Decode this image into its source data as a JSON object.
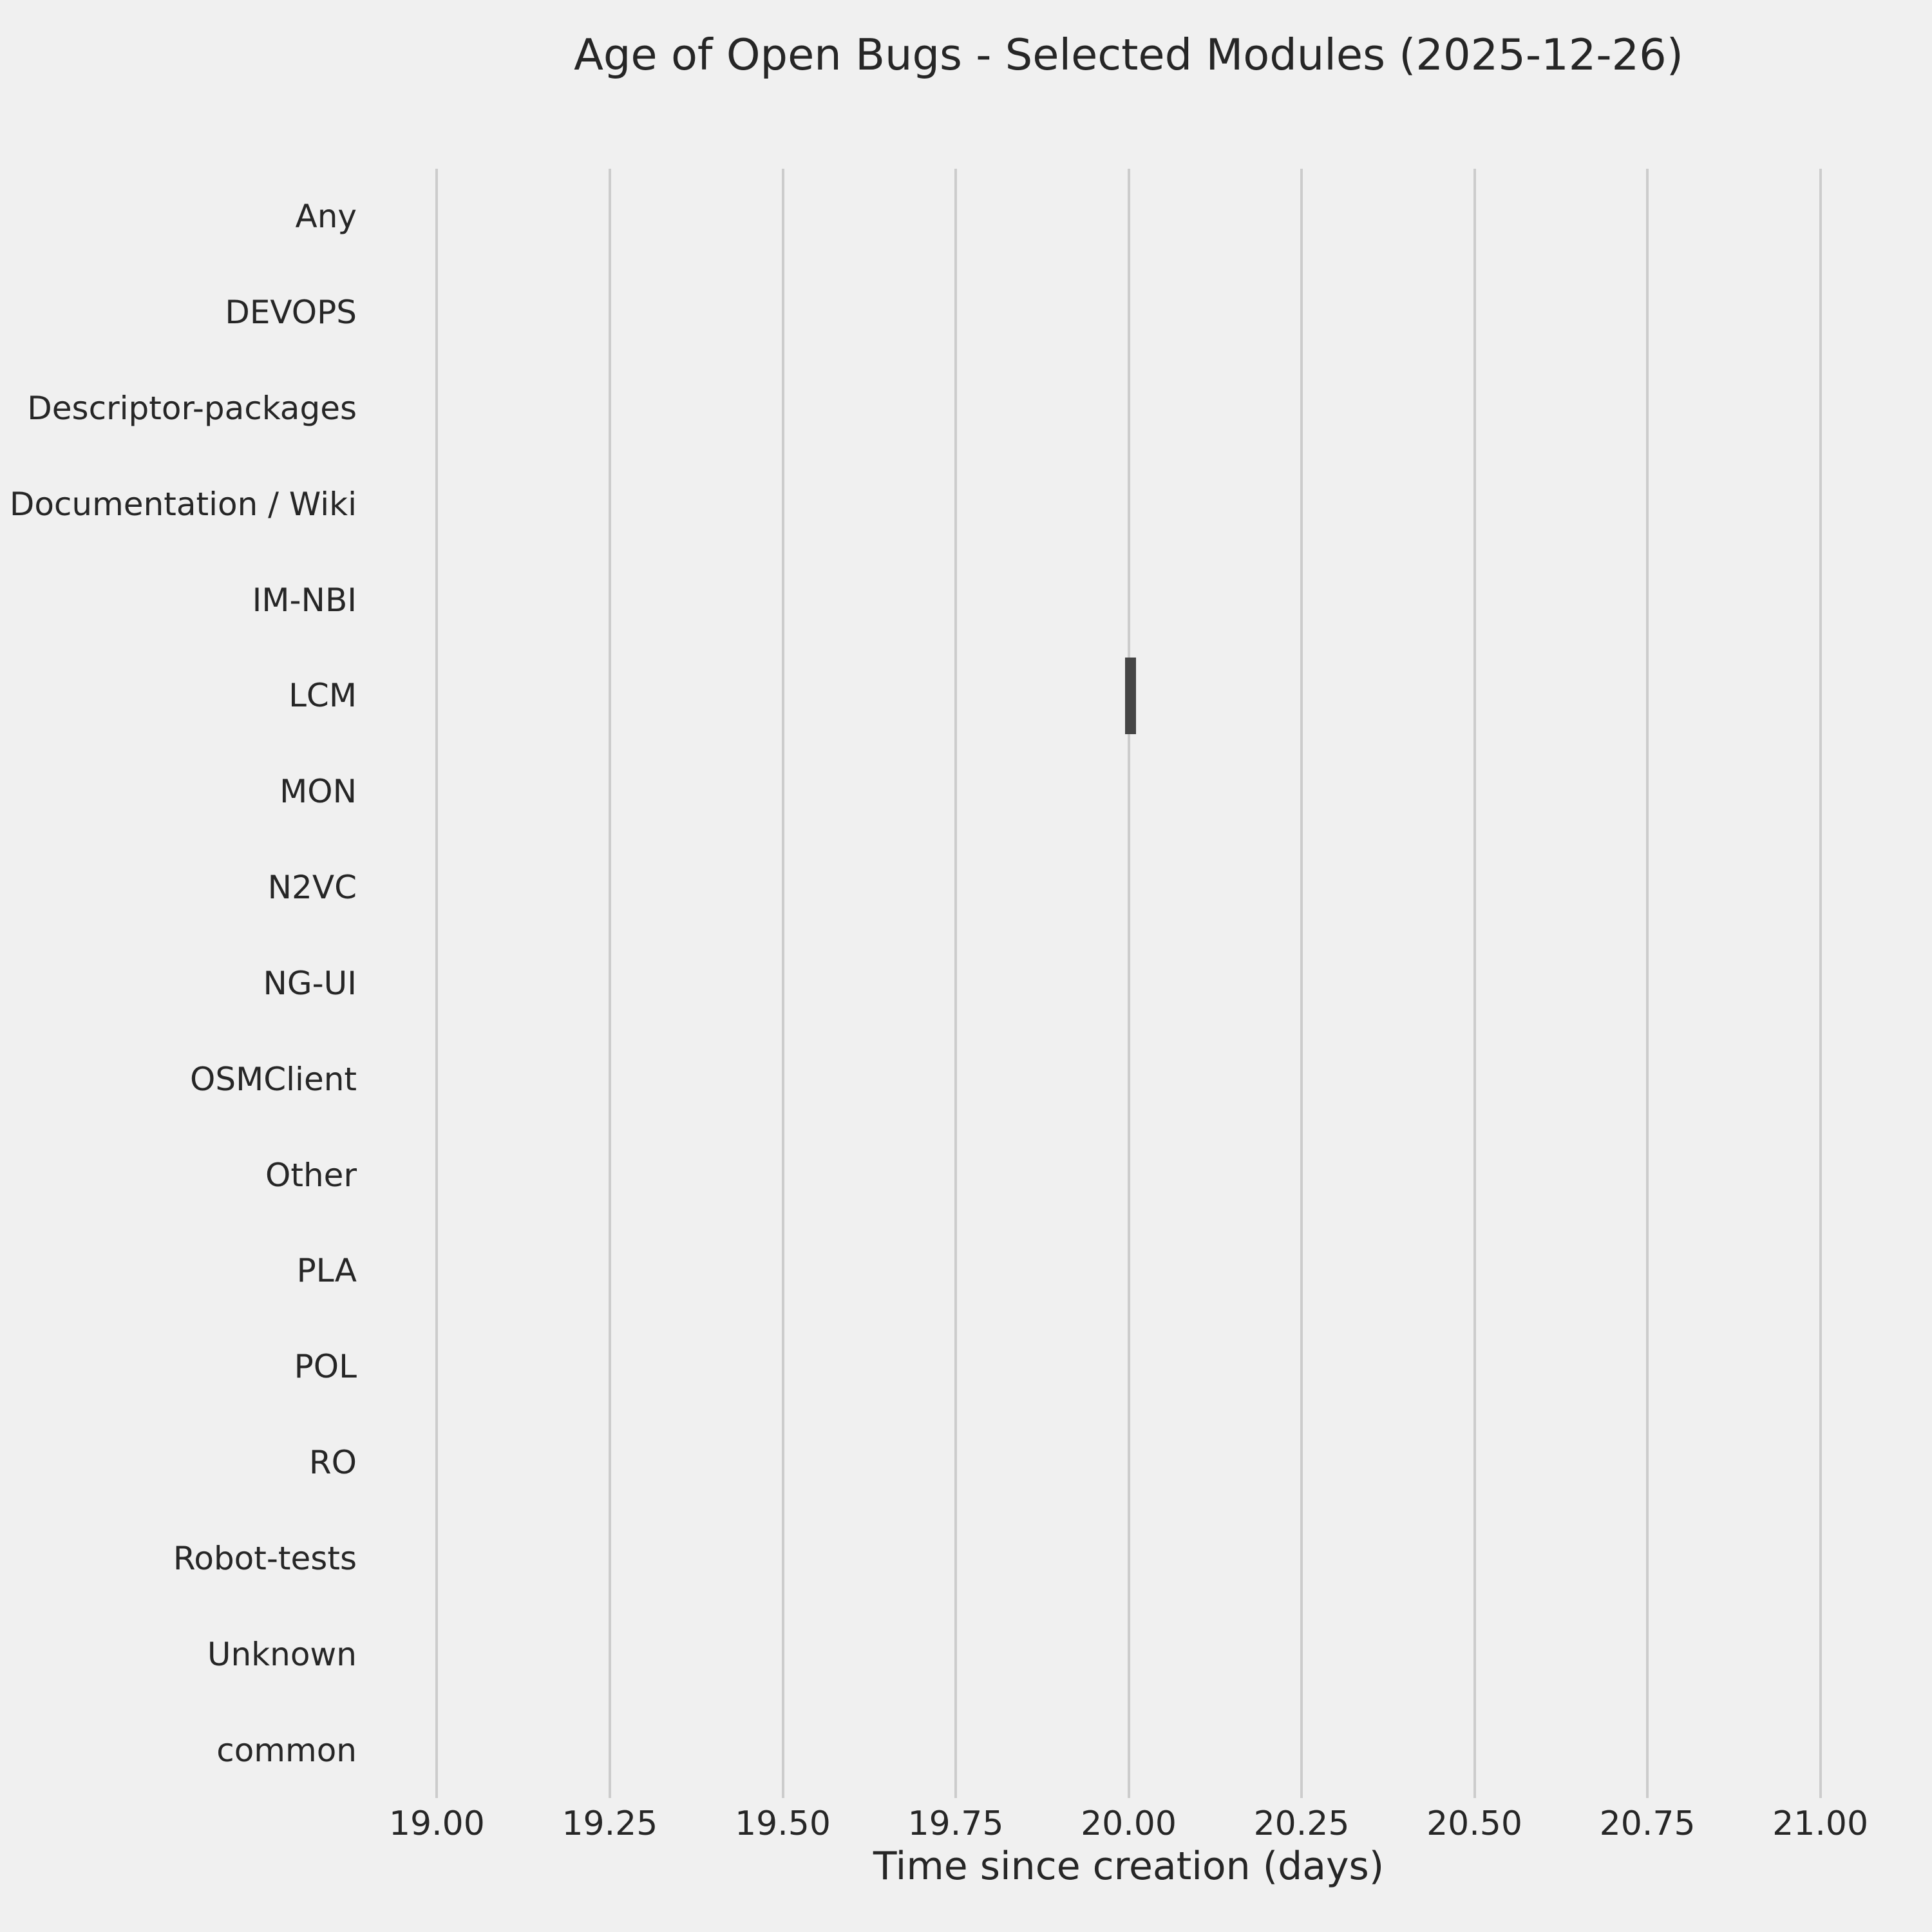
{
  "chart_data": {
    "type": "bar",
    "orientation": "horizontal",
    "title": "Age of Open Bugs - Selected Modules (2025-12-26)",
    "xlabel": "Time since creation (days)",
    "ylabel": "",
    "categories": [
      "Any",
      "DEVOPS",
      "Descriptor-packages",
      "Documentation / Wiki",
      "IM-NBI",
      "LCM",
      "MON",
      "N2VC",
      "NG-UI",
      "OSMClient",
      "Other",
      "PLA",
      "POL",
      "RO",
      "Robot-tests",
      "Unknown",
      "common"
    ],
    "bars": [
      {
        "category": "LCM",
        "start": 19.995,
        "end": 20.011,
        "center": 20.0
      }
    ],
    "bar_height_fraction": 0.8,
    "xlim": [
      18.9,
      21.1
    ],
    "xticks": [
      {
        "value": 19.0,
        "label": "19.00"
      },
      {
        "value": 19.25,
        "label": "19.25"
      },
      {
        "value": 19.5,
        "label": "19.50"
      },
      {
        "value": 19.75,
        "label": "19.75"
      },
      {
        "value": 20.0,
        "label": "20.00"
      },
      {
        "value": 20.25,
        "label": "20.25"
      },
      {
        "value": 20.5,
        "label": "20.50"
      },
      {
        "value": 20.75,
        "label": "20.75"
      },
      {
        "value": 21.0,
        "label": "21.00"
      }
    ],
    "grid": "vertical-only",
    "legend": false,
    "colors": {
      "background": "#f0f0f0",
      "gridline": "#cccccc",
      "bar": "#454545",
      "text": "#262626"
    }
  }
}
